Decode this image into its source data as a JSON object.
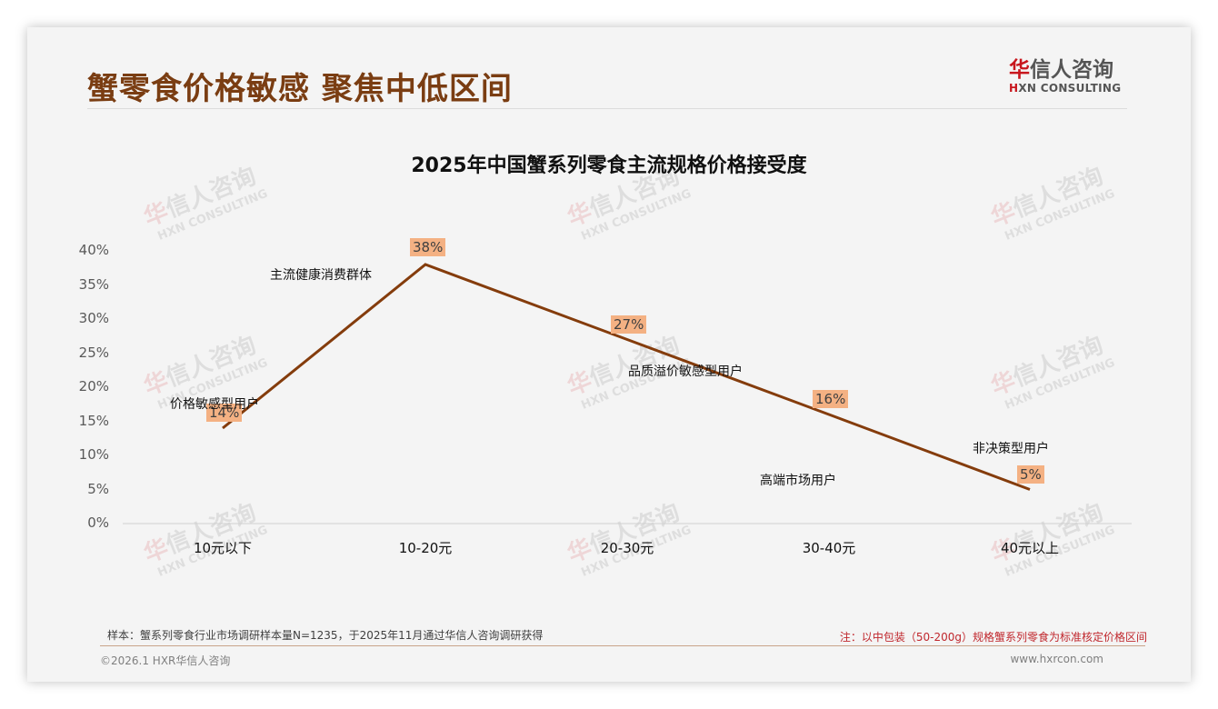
{
  "header": {
    "title": "蟹零食价格敏感 聚焦中低区间",
    "logo_cn_hua": "华",
    "logo_cn_rest": "信人咨询",
    "logo_en_prefix": "H",
    "logo_en_rest": "XN CONSULTING"
  },
  "watermark": {
    "cn_a": "华",
    "cn_b": "信人咨询",
    "en": "HXN CONSULTING"
  },
  "chart_data": {
    "type": "line",
    "title": "2025年中国蟹系列零食主流规格价格接受度",
    "categories": [
      "10元以下",
      "10-20元",
      "20-30元",
      "30-40元",
      "40元以上"
    ],
    "values": [
      14,
      38,
      27,
      16,
      5
    ],
    "value_labels": [
      "14%",
      "38%",
      "27%",
      "16%",
      "5%"
    ],
    "annotations": [
      "价格敏感型用户",
      "主流健康消费群体",
      "品质溢价敏感型用户",
      "高端市场用户",
      "非决策型用户"
    ],
    "yticks": [
      "0%",
      "5%",
      "10%",
      "15%",
      "20%",
      "25%",
      "30%",
      "35%",
      "40%"
    ],
    "ylim": [
      0,
      40
    ],
    "xlabel": "",
    "ylabel": "",
    "grid": false,
    "legend": "none",
    "line_color": "#843c0c",
    "label_bg_color": "#f4b183"
  },
  "footer": {
    "source": "样本：蟹系列零食行业市场调研样本量N=1235，于2025年11月通过华信人咨询调研获得",
    "note": "注：以中包装（50-200g）规格蟹系列零食为标准核定价格区间",
    "copyright": "©2026.1 HXR华信人咨询",
    "website": "www.hxrcon.com"
  }
}
